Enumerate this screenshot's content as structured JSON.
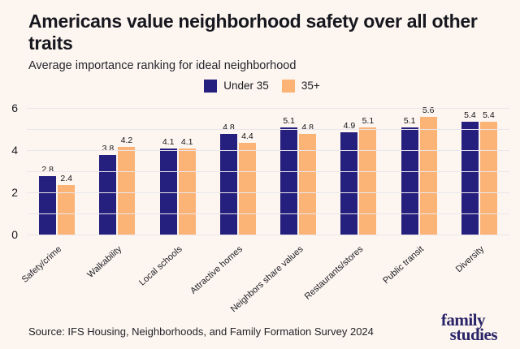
{
  "header": {
    "title": "Americans value neighborhood safety over all other traits",
    "subtitle": "Average importance ranking for ideal neighborhood"
  },
  "colors": {
    "background": "#fdf6f0",
    "under35": "#251f7d",
    "plus35": "#fcb376",
    "gridline": "#e9e6ec"
  },
  "chart_data": {
    "type": "bar",
    "title": "Americans value neighborhood safety over all other traits",
    "subtitle": "Average importance ranking for ideal neighborhood",
    "categories": [
      "Safety/crime",
      "Walkability",
      "Local schools",
      "Attractive homes",
      "Neighbors share values",
      "Restaurants/stores",
      "Public transit",
      "Diversity"
    ],
    "series": [
      {
        "name": "Under 35",
        "color": "#251f7d",
        "values": [
          2.8,
          3.8,
          4.1,
          4.8,
          5.1,
          4.9,
          5.1,
          5.4
        ]
      },
      {
        "name": "35+",
        "color": "#fcb376",
        "values": [
          2.4,
          4.2,
          4.1,
          4.4,
          4.8,
          5.1,
          5.6,
          5.4
        ]
      }
    ],
    "ylim": [
      0,
      6
    ],
    "yticks": [
      0,
      2,
      4,
      6
    ],
    "gridline_values": [
      0,
      1,
      2,
      3,
      4,
      5,
      6
    ],
    "grid": true,
    "legend_position": "top",
    "value_labels": true
  },
  "footer": {
    "source": "Source: IFS Housing, Neighborhoods, and Family Formation Survey 2024",
    "logo_line1": "family",
    "logo_line2": "studies"
  }
}
